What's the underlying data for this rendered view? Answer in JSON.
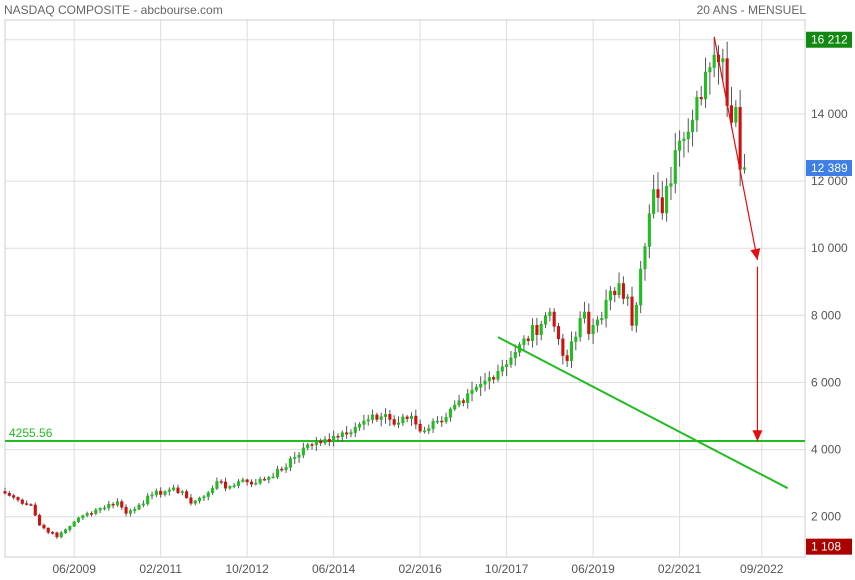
{
  "header": {
    "left_title": "NASDAQ COMPOSITE - abcbourse.com",
    "right_title": "20 ANS - MENSUEL"
  },
  "colors": {
    "up": "#22bb22",
    "down": "#cc1111",
    "level_line": "#22bb22",
    "trend_line": "#22bb22",
    "arrow": "#e01010",
    "badge_high": "#118811",
    "badge_last": "#3d7fe6",
    "badge_low": "#aa0000",
    "grid": "#dddddd"
  },
  "chart_data": {
    "type": "candlestick",
    "title": "NASDAQ COMPOSITE",
    "period": "20 ANS - MENSUEL",
    "ylim": [
      800,
      16800
    ],
    "xlim": [
      "2008-02",
      "2023-07"
    ],
    "grid": true,
    "y_ticks": [
      "2 000",
      "4 000",
      "6 000",
      "8 000",
      "10 000",
      "12 000",
      "14 000"
    ],
    "x_ticks": [
      "06/2009",
      "02/2011",
      "10/2012",
      "06/2014",
      "02/2016",
      "10/2017",
      "06/2019",
      "02/2021",
      "09/2022"
    ],
    "badges": {
      "high": {
        "label": "16 212",
        "value": 16212
      },
      "last": {
        "label": "12 389",
        "value": 12389
      },
      "low": {
        "label": "1 108",
        "value": 1108
      }
    },
    "horizontal_level": {
      "label": "4255.56",
      "value": 4255.56
    },
    "trend_line": {
      "start": [
        "2017-08",
        7350
      ],
      "end": [
        "2023-03",
        2850
      ]
    },
    "down_arrows": [
      {
        "start": [
          "2021-10",
          16300
        ],
        "end": [
          "2022-08",
          9650
        ]
      },
      {
        "start": [
          "2022-08",
          9450
        ],
        "end": [
          "2022-08",
          4250
        ]
      }
    ],
    "anchors": [
      [
        "2008-02",
        2700
      ],
      [
        "2008-05",
        2500
      ],
      [
        "2008-08",
        2350
      ],
      [
        "2008-10",
        1750
      ],
      [
        "2009-02",
        1400
      ],
      [
        "2009-06",
        1850
      ],
      [
        "2009-09",
        2100
      ],
      [
        "2009-12",
        2250
      ],
      [
        "2010-04",
        2450
      ],
      [
        "2010-06",
        2100
      ],
      [
        "2010-09",
        2350
      ],
      [
        "2010-12",
        2650
      ],
      [
        "2011-04",
        2800
      ],
      [
        "2011-07",
        2750
      ],
      [
        "2011-09",
        2400
      ],
      [
        "2011-12",
        2600
      ],
      [
        "2012-03",
        3050
      ],
      [
        "2012-05",
        2850
      ],
      [
        "2012-09",
        3100
      ],
      [
        "2012-12",
        3000
      ],
      [
        "2013-06",
        3400
      ],
      [
        "2013-12",
        4150
      ],
      [
        "2014-03",
        4200
      ],
      [
        "2014-06",
        4400
      ],
      [
        "2014-12",
        4750
      ],
      [
        "2015-06",
        5050
      ],
      [
        "2015-08",
        4750
      ],
      [
        "2015-12",
        5000
      ],
      [
        "2016-02",
        4550
      ],
      [
        "2016-06",
        4850
      ],
      [
        "2016-12",
        5400
      ],
      [
        "2017-06",
        6150
      ],
      [
        "2017-12",
        6900
      ],
      [
        "2018-08",
        8100
      ],
      [
        "2018-10",
        7300
      ],
      [
        "2018-12",
        6650
      ],
      [
        "2019-04",
        8100
      ],
      [
        "2019-05",
        7450
      ],
      [
        "2019-12",
        8950
      ],
      [
        "2020-02",
        8550
      ],
      [
        "2020-03",
        7700
      ],
      [
        "2020-06",
        10050
      ],
      [
        "2020-08",
        11750
      ],
      [
        "2020-10",
        11050
      ],
      [
        "2021-02",
        13200
      ],
      [
        "2021-06",
        14500
      ],
      [
        "2021-08",
        15250
      ],
      [
        "2021-11",
        15550
      ],
      [
        "2021-12",
        15650
      ],
      [
        "2022-01",
        14250
      ],
      [
        "2022-02",
        13750
      ],
      [
        "2022-03",
        14200
      ],
      [
        "2022-04",
        12350
      ],
      [
        "2022-05",
        12400
      ]
    ]
  }
}
